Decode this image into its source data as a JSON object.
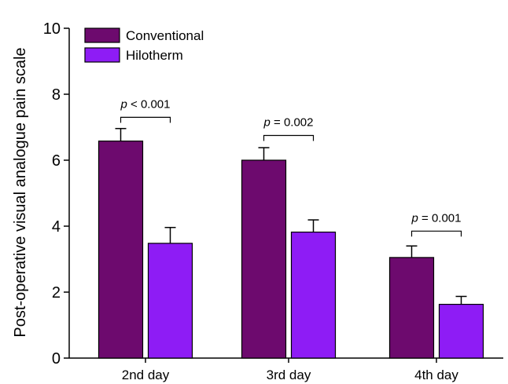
{
  "chart_data": {
    "type": "bar",
    "title": "",
    "xlabel": "",
    "ylabel": "Post-operative visual analogue pain scale",
    "ylim": [
      0,
      10
    ],
    "yticks": [
      0,
      2,
      4,
      6,
      8,
      10
    ],
    "categories": [
      "2nd day",
      "3rd day",
      "4th day"
    ],
    "series": [
      {
        "name": "Conventional",
        "color": "#6d0a6e",
        "values": [
          6.58,
          6.0,
          3.05
        ],
        "errors": [
          0.38,
          0.38,
          0.35
        ]
      },
      {
        "name": "Hilotherm",
        "color": "#8e1cf5",
        "values": [
          3.48,
          3.82,
          1.63
        ],
        "errors": [
          0.48,
          0.37,
          0.24
        ]
      }
    ],
    "annotations": [
      {
        "category": "2nd day",
        "p_symbol": "p",
        "text": " < 0.001",
        "level": 7.3
      },
      {
        "category": "3rd day",
        "p_symbol": "p",
        "text": " = 0.002",
        "level": 6.75
      },
      {
        "category": "4th day",
        "p_symbol": "p",
        "text": " = 0.001",
        "level": 3.85
      }
    ],
    "legend": {
      "position": "top-left"
    },
    "grid": false
  }
}
